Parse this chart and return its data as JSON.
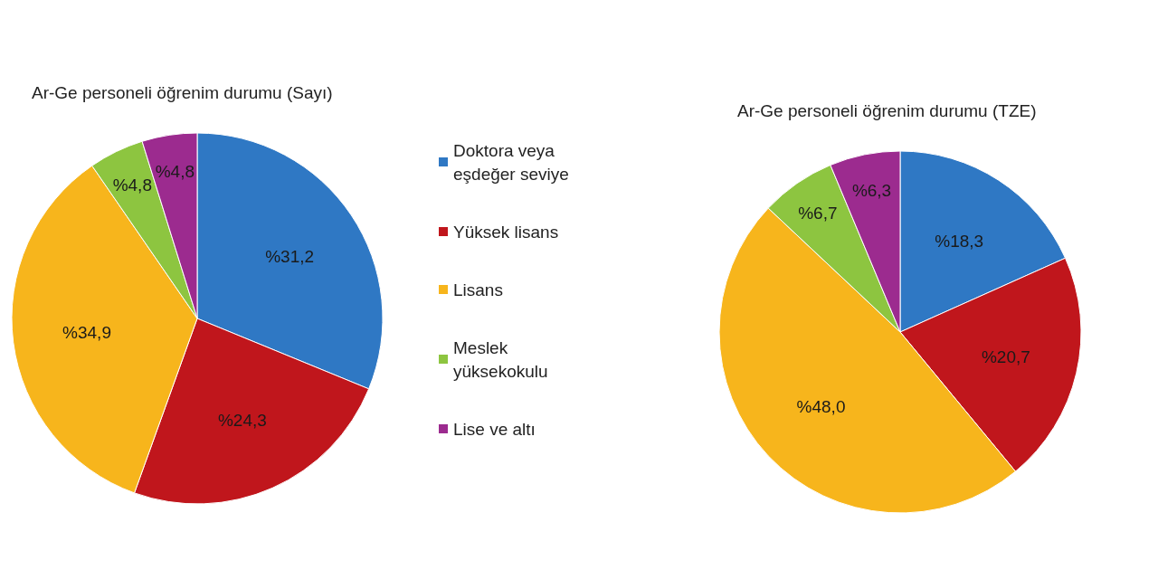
{
  "chart_data": [
    {
      "type": "pie",
      "title": "Ar-Ge personeli öğrenim durumu (Sayı)",
      "categories": [
        "Doktora veya eşdeğer seviye",
        "Yüksek lisans",
        "Lisans",
        "Meslek yüksekokulu",
        "Lise ve altı"
      ],
      "values": [
        31.2,
        24.3,
        34.9,
        4.8,
        4.8
      ],
      "value_labels": [
        "%31,2",
        "%24,3",
        "%34,9",
        "%4,8",
        "%4,8"
      ],
      "colors": [
        "#2f78c4",
        "#c0161c",
        "#f7b51c",
        "#8dc540",
        "#9c2b8f"
      ],
      "legend": "right"
    },
    {
      "type": "pie",
      "title": "Ar-Ge personeli öğrenim durumu (TZE)",
      "values": [
        18.3,
        20.7,
        48.0,
        6.7,
        6.3
      ],
      "value_labels": [
        "%18,3",
        "%20,7",
        "%48,0",
        "%6,7",
        "%6,3"
      ],
      "colors": [
        "#2f78c4",
        "#c0161c",
        "#f7b51c",
        "#8dc540",
        "#9c2b8f"
      ],
      "legend": false
    }
  ]
}
